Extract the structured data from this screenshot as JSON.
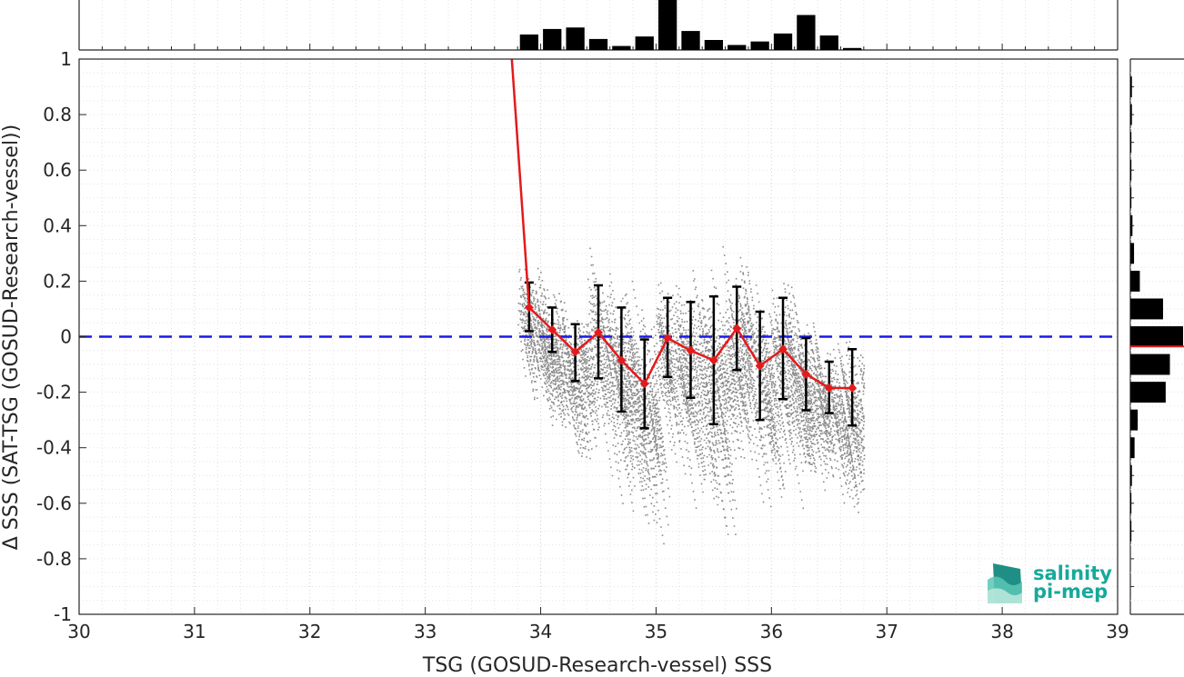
{
  "chart_data": {
    "type": "scatter",
    "xlabel": "TSG (GOSUD-Research-vessel) SSS",
    "ylabel": "Δ SSS (SAT-TSG (GOSUD-Research-vessel))",
    "xlim": [
      30,
      39
    ],
    "ylim": [
      -1,
      1
    ],
    "xticks": [
      "30",
      "31",
      "32",
      "33",
      "34",
      "35",
      "36",
      "37",
      "38",
      "39"
    ],
    "yticks": [
      "-1",
      "-0.8",
      "-0.6",
      "-0.4",
      "-0.2",
      "0",
      "0.2",
      "0.4",
      "0.6",
      "0.8",
      "1"
    ],
    "grid": true,
    "colors": {
      "scatter": "#808080",
      "mean_line": "#e31a1c",
      "zero_line": "#1a1ae6",
      "error_bars": "#000000",
      "histogram": "#000000",
      "logo": "#17a99b"
    },
    "zero_line": {
      "y": 0,
      "style": "dashed"
    },
    "binned_means": {
      "x": [
        33.9,
        34.1,
        34.3,
        34.5,
        34.7,
        34.9,
        35.1,
        35.3,
        35.5,
        35.7,
        35.9,
        36.1,
        36.3,
        36.5,
        36.7
      ],
      "mean": [
        0.105,
        0.025,
        -0.055,
        0.015,
        -0.085,
        -0.17,
        -0.005,
        -0.05,
        -0.085,
        0.03,
        -0.105,
        -0.045,
        -0.135,
        -0.185,
        -0.185
      ],
      "lower": [
        0.02,
        -0.055,
        -0.16,
        -0.15,
        -0.27,
        -0.33,
        -0.145,
        -0.22,
        -0.315,
        -0.12,
        -0.3,
        -0.225,
        -0.265,
        -0.275,
        -0.32
      ],
      "upper": [
        0.195,
        0.105,
        0.045,
        0.185,
        0.105,
        -0.01,
        0.14,
        0.125,
        0.145,
        0.18,
        0.09,
        0.14,
        -0.005,
        -0.09,
        -0.045
      ],
      "lead_in": {
        "x": [
          33.75,
          33.9
        ],
        "y": [
          1.0,
          0.105
        ]
      }
    },
    "top_histogram": {
      "bin_centers": [
        33.9,
        34.1,
        34.3,
        34.5,
        34.7,
        34.9,
        35.1,
        35.3,
        35.5,
        35.7,
        35.9,
        36.1,
        36.3,
        36.5,
        36.7
      ],
      "relative_counts": [
        0.31,
        0.42,
        0.45,
        0.22,
        0.08,
        0.27,
        1.0,
        0.38,
        0.2,
        0.1,
        0.17,
        0.33,
        0.7,
        0.29,
        0.04
      ]
    },
    "right_histogram": {
      "bin_centers": [
        0.9,
        0.8,
        0.7,
        0.6,
        0.5,
        0.4,
        0.3,
        0.2,
        0.1,
        0.0,
        -0.1,
        -0.2,
        -0.3,
        -0.4,
        -0.5,
        -0.6,
        -0.7
      ],
      "relative_counts": [
        0.03,
        0.03,
        0.02,
        0.02,
        0.02,
        0.04,
        0.07,
        0.18,
        0.62,
        1.0,
        0.75,
        0.67,
        0.14,
        0.08,
        0.03,
        0.02,
        0.02
      ],
      "mean_marker": -0.035
    }
  },
  "logo": {
    "line1": "salinity",
    "line2": "pi-mep"
  }
}
